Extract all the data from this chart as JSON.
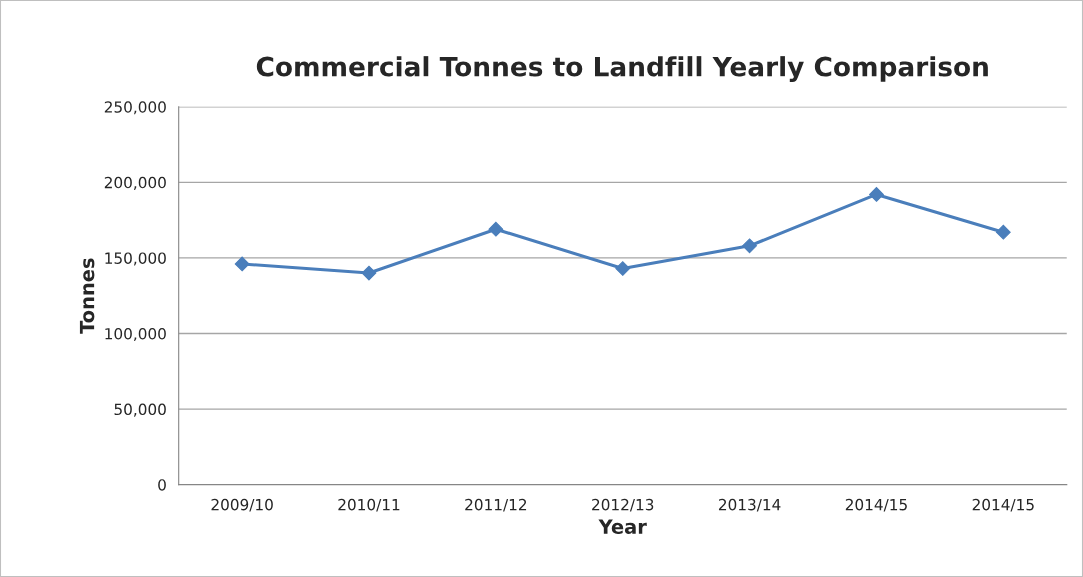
{
  "chart_data": {
    "type": "line",
    "title": "Commercial Tonnes to Landfill Yearly Comparison",
    "xlabel": "Year",
    "ylabel": "Tonnes",
    "categories": [
      "2009/10",
      "2010/11",
      "2011/12",
      "2012/13",
      "2013/14",
      "2014/15",
      "2014/15"
    ],
    "series": [
      {
        "color": "#4a7ebb",
        "values": [
          146000,
          140000,
          169000,
          143000,
          158000,
          192000,
          167000
        ]
      }
    ],
    "ylim": [
      0,
      250000
    ],
    "yticks": [
      {
        "value": 0,
        "label": "0"
      },
      {
        "value": 50000,
        "label": "50,000"
      },
      {
        "value": 100000,
        "label": "100,000"
      },
      {
        "value": 150000,
        "label": "150,000"
      },
      {
        "value": 200000,
        "label": "200,000"
      },
      {
        "value": 250000,
        "label": "250,000"
      }
    ],
    "grid": "y",
    "marker": "diamond",
    "line_style": "solid"
  }
}
